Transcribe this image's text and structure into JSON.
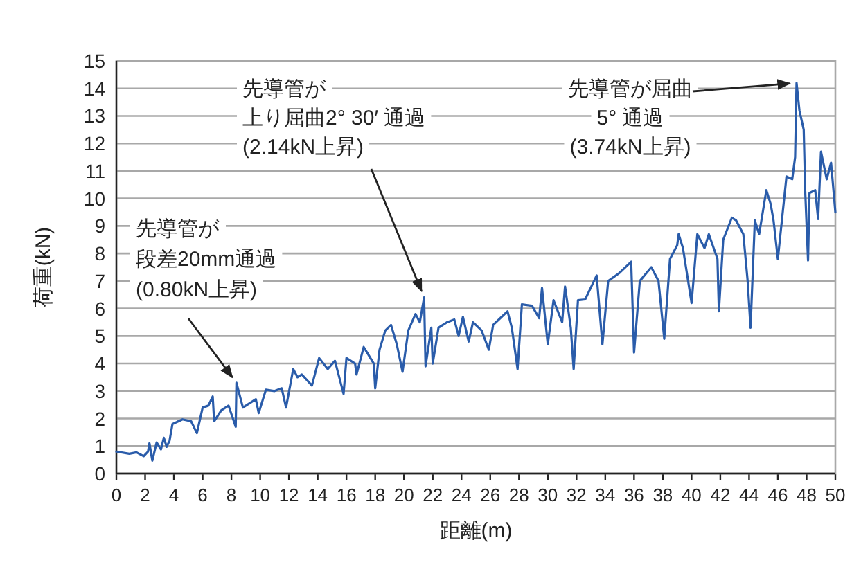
{
  "chart_data": {
    "type": "line",
    "xlabel": "距離(m)",
    "ylabel": "荷重(kN)",
    "xlim": [
      0,
      50
    ],
    "xticks": [
      0,
      2,
      4,
      6,
      8,
      10,
      12,
      14,
      16,
      18,
      20,
      22,
      24,
      26,
      28,
      30,
      32,
      34,
      36,
      38,
      40,
      42,
      44,
      46,
      48,
      50
    ],
    "ylim": [
      0,
      15
    ],
    "yticks": [
      0,
      1,
      2,
      3,
      4,
      5,
      6,
      7,
      8,
      9,
      10,
      11,
      12,
      13,
      14,
      15
    ],
    "grid": "y",
    "marker": "none",
    "line_style": "solid",
    "series": [
      {
        "color": "#2a5caa",
        "x": [
          0,
          0.9,
          1.4,
          1.9,
          2.2,
          2.3,
          2.5,
          2.8,
          3.1,
          3.3,
          3.5,
          3.7,
          3.9,
          4.6,
          5.2,
          5.6,
          6.0,
          6.4,
          6.7,
          6.8,
          7.3,
          7.8,
          8.3,
          8.35,
          8.8,
          9.7,
          9.9,
          10.4,
          11.0,
          11.5,
          11.8,
          12.3,
          12.6,
          12.9,
          13.6,
          14.1,
          14.7,
          15.2,
          15.8,
          16.0,
          16.6,
          16.7,
          17.2,
          17.9,
          18.0,
          18.3,
          18.7,
          19.1,
          19.5,
          19.9,
          20.3,
          20.8,
          21.1,
          21.4,
          21.5,
          21.9,
          22.0,
          22.4,
          23.0,
          23.5,
          23.8,
          24.1,
          24.5,
          24.8,
          25.4,
          25.9,
          26.2,
          26.7,
          27.2,
          27.5,
          27.9,
          28.2,
          28.9,
          29.4,
          29.6,
          30.0,
          30.4,
          31.0,
          31.2,
          31.6,
          31.8,
          32.1,
          32.6,
          33.4,
          33.8,
          34.2,
          35.0,
          35.8,
          36.0,
          36.4,
          37.2,
          37.7,
          38.1,
          38.5,
          39.0,
          39.1,
          39.4,
          40.0,
          40.4,
          40.9,
          41.2,
          41.8,
          41.9,
          42.2,
          42.8,
          43.1,
          43.6,
          43.9,
          44.1,
          44.4,
          44.7,
          45.2,
          45.5,
          45.7,
          46.0,
          46.3,
          46.6,
          47.0,
          47.2,
          47.3,
          47.5,
          47.8,
          47.9,
          48.1,
          48.2,
          48.6,
          48.8,
          49.0,
          49.4,
          49.7,
          50.0
        ],
        "values": [
          0.8,
          0.72,
          0.77,
          0.63,
          0.8,
          1.1,
          0.47,
          1.13,
          0.88,
          1.3,
          0.97,
          1.2,
          1.8,
          1.97,
          1.9,
          1.47,
          2.4,
          2.47,
          2.8,
          1.9,
          2.3,
          2.47,
          1.7,
          3.3,
          2.4,
          2.7,
          2.2,
          3.05,
          3.0,
          3.1,
          2.4,
          3.8,
          3.5,
          3.6,
          3.2,
          4.2,
          3.8,
          4.1,
          2.9,
          4.2,
          4.0,
          3.6,
          4.6,
          4.0,
          3.1,
          4.5,
          5.2,
          5.4,
          4.7,
          3.7,
          5.2,
          5.8,
          5.5,
          6.4,
          3.9,
          5.3,
          4.0,
          5.3,
          5.5,
          5.6,
          5.0,
          5.7,
          4.8,
          5.5,
          5.2,
          4.5,
          5.4,
          5.65,
          5.9,
          5.3,
          3.8,
          6.15,
          6.1,
          5.65,
          6.75,
          4.7,
          6.3,
          5.5,
          6.8,
          5.3,
          3.8,
          6.3,
          6.33,
          7.2,
          4.7,
          7.0,
          7.3,
          7.7,
          4.4,
          7.0,
          7.5,
          7.0,
          4.9,
          7.8,
          8.3,
          8.7,
          8.2,
          6.2,
          8.7,
          8.2,
          8.7,
          7.8,
          5.9,
          8.5,
          9.3,
          9.2,
          8.7,
          7.0,
          5.3,
          9.2,
          8.7,
          10.3,
          9.8,
          9.2,
          7.8,
          9.3,
          10.8,
          10.7,
          11.5,
          14.2,
          13.2,
          12.5,
          10.3,
          7.75,
          10.2,
          10.3,
          9.25,
          11.7,
          10.7,
          11.3,
          9.5
        ]
      }
    ],
    "annotations": [
      "先導管が",
      "段差20mm通過",
      {
        "text": "(0.80kN上昇)",
        "x": 8.35,
        "y": 3.3
      },
      "先導管が",
      "上り屈曲2° 30′ 通過",
      {
        "text": "(2.14kN上昇)",
        "x": 21.4,
        "y": 6.4
      },
      {
        "text": "先導管が屈曲",
        "x": 47.3,
        "y": 14.2
      },
      "5° 通過",
      "(3.74kN上昇)"
    ]
  }
}
